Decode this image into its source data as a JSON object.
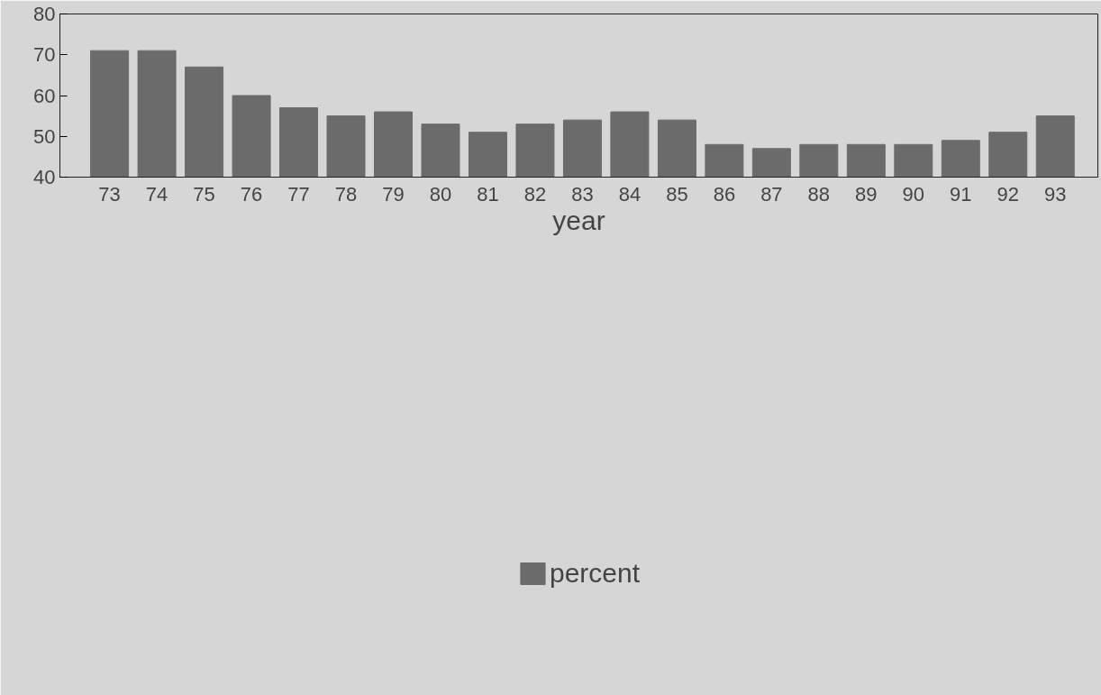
{
  "chart_data": {
    "type": "bar",
    "xlabel": "year",
    "categories": [
      "73",
      "74",
      "75",
      "76",
      "77",
      "78",
      "79",
      "80",
      "81",
      "82",
      "83",
      "84",
      "85",
      "86",
      "87",
      "88",
      "89",
      "90",
      "91",
      "92",
      "93"
    ],
    "series": [
      {
        "name": "percent",
        "color": "#6b6b6b",
        "values": [
          71,
          71,
          67,
          60,
          57,
          55,
          56,
          53,
          51,
          53,
          54,
          56,
          54,
          48,
          47,
          48,
          48,
          48,
          49,
          51,
          55
        ]
      }
    ],
    "ylim": [
      40,
      80
    ],
    "yticks": [
      40,
      {
        "value": 50,
        "label": "50"
      },
      {
        "value": 60,
        "label": "60"
      },
      {
        "value": 70,
        "label": "70"
      },
      80
    ],
    "grid": false,
    "legend": "bottom"
  }
}
